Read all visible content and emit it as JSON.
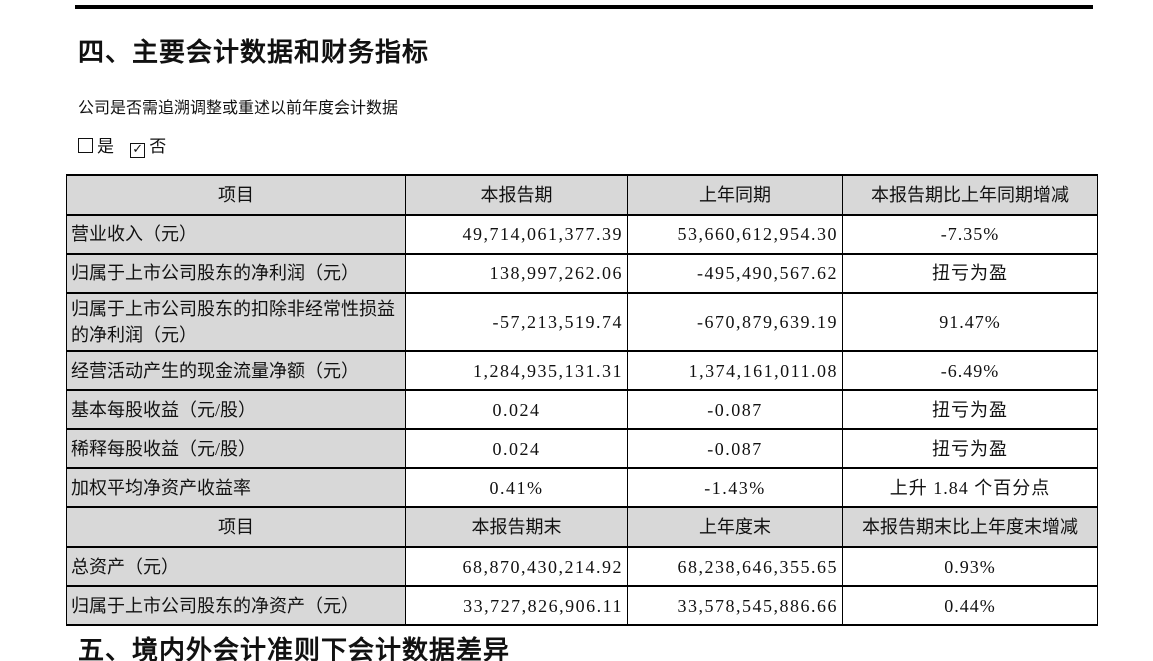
{
  "colors": {
    "table_shade": "#d8d8d8",
    "rule_color": "#000000"
  },
  "page": {
    "section_4_title": "四、主要会计数据和财务指标",
    "restate_question": "公司是否需追溯调整或重述以前年度会计数据",
    "checkboxes": {
      "yes": {
        "label": "是",
        "checked": false
      },
      "no": {
        "label": "否",
        "checked": true
      }
    },
    "section_5_title": "五、境内外会计准则下会计数据差异"
  },
  "table": {
    "sections": [
      {
        "header": {
          "item": "项目",
          "current": "本报告期",
          "prior": "上年同期",
          "change": "本报告期比上年同期增减"
        },
        "rows": [
          {
            "label": "营业收入（元）",
            "current": "49,714,061,377.39",
            "prior": "53,660,612,954.30",
            "change": "-7.35%",
            "value_align": "right"
          },
          {
            "label": "归属于上市公司股东的净利润（元）",
            "current": "138,997,262.06",
            "prior": "-495,490,567.62",
            "change": "扭亏为盈",
            "value_align": "right"
          },
          {
            "label": "归属于上市公司股东的扣除非经常性损益的净利润（元）",
            "current": "-57,213,519.74",
            "prior": "-670,879,639.19",
            "change": "91.47%",
            "value_align": "right"
          },
          {
            "label": "经营活动产生的现金流量净额（元）",
            "current": "1,284,935,131.31",
            "prior": "1,374,161,011.08",
            "change": "-6.49%",
            "value_align": "right"
          },
          {
            "label": "基本每股收益（元/股）",
            "current": "0.024",
            "prior": "-0.087",
            "change": "扭亏为盈",
            "value_align": "center"
          },
          {
            "label": "稀释每股收益（元/股）",
            "current": "0.024",
            "prior": "-0.087",
            "change": "扭亏为盈",
            "value_align": "center"
          },
          {
            "label": "加权平均净资产收益率",
            "current": "0.41%",
            "prior": "-1.43%",
            "change": "上升 1.84 个百分点",
            "value_align": "center"
          }
        ]
      },
      {
        "header": {
          "item": "项目",
          "current": "本报告期末",
          "prior": "上年度末",
          "change": "本报告期末比上年度末增减"
        },
        "rows": [
          {
            "label": "总资产（元）",
            "current": "68,870,430,214.92",
            "prior": "68,238,646,355.65",
            "change": "0.93%",
            "value_align": "right"
          },
          {
            "label": "归属于上市公司股东的净资产（元）",
            "current": "33,727,826,906.11",
            "prior": "33,578,545,886.66",
            "change": "0.44%",
            "value_align": "right"
          }
        ]
      }
    ]
  }
}
